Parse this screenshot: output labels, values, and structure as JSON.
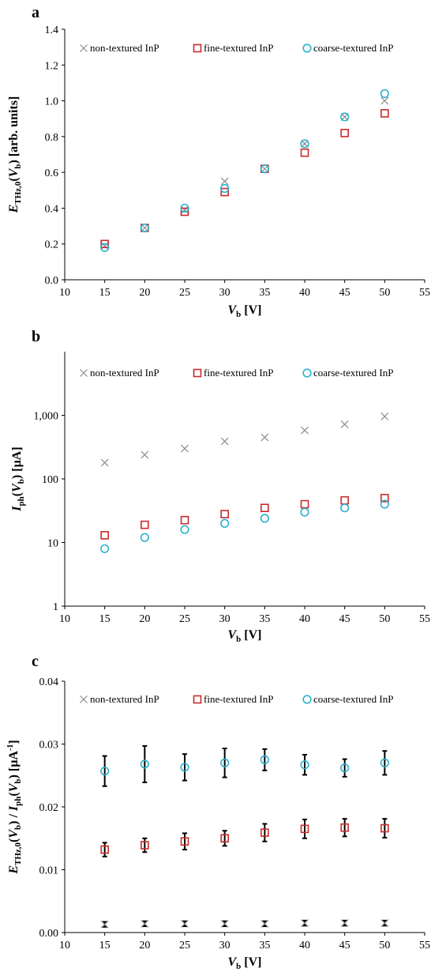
{
  "colors": {
    "non_textured": "#8c8c8c",
    "fine_textured": "#cc2a2a",
    "coarse_textured": "#2ab2cf",
    "error_bar": "#000000"
  },
  "legend": [
    {
      "label": "non-textured InP",
      "marker": "x"
    },
    {
      "label": "fine-textured InP",
      "marker": "square"
    },
    {
      "label": "coarse-textured InP",
      "marker": "circle"
    }
  ],
  "chart_data": [
    {
      "panel": "a",
      "type": "scatter",
      "x": [
        15,
        20,
        25,
        30,
        35,
        40,
        45,
        50
      ],
      "xlabel": {
        "main": "V",
        "sub": "b",
        "tail": " [V]"
      },
      "ylabel": {
        "main": "E",
        "sub": "THz,0",
        "tail": "(V",
        "sub2": "b",
        "tail2": ") [arb. units]"
      },
      "xlim": [
        10,
        55
      ],
      "xticks": [
        "10",
        "15",
        "20",
        "25",
        "30",
        "35",
        "40",
        "45",
        "50",
        "55"
      ],
      "ylim": [
        0,
        1.4
      ],
      "yscale": "linear",
      "yticks": [
        0,
        0.2,
        0.4,
        0.6,
        0.8,
        1.0,
        1.2,
        1.4
      ],
      "yticklabels": [
        "0.0",
        "0.2",
        "0.4",
        "0.6",
        "0.8",
        "1.0",
        "1.2",
        "1.4"
      ],
      "grid": false,
      "legend_position": "top",
      "series": [
        {
          "name": "non-textured InP",
          "marker": "x",
          "y": [
            0.19,
            0.29,
            0.39,
            0.55,
            0.62,
            0.76,
            0.91,
            1.0
          ]
        },
        {
          "name": "fine-textured InP",
          "marker": "square",
          "y": [
            0.2,
            0.29,
            0.38,
            0.49,
            0.62,
            0.71,
            0.82,
            0.93
          ]
        },
        {
          "name": "coarse-textured InP",
          "marker": "circle",
          "y": [
            0.18,
            0.29,
            0.4,
            0.51,
            0.62,
            0.76,
            0.91,
            1.04
          ]
        }
      ]
    },
    {
      "panel": "b",
      "type": "scatter",
      "x": [
        15,
        20,
        25,
        30,
        35,
        40,
        45,
        50
      ],
      "xlabel": {
        "main": "V",
        "sub": "b",
        "tail": " [V]"
      },
      "ylabel": {
        "main": "I",
        "sub": "ph",
        "tail": "(V",
        "sub2": "b",
        "tail2": ") [µA]"
      },
      "xlim": [
        10,
        55
      ],
      "xticks": [
        "10",
        "15",
        "20",
        "25",
        "30",
        "35",
        "40",
        "45",
        "50",
        "55"
      ],
      "ylim": [
        1,
        10000
      ],
      "yscale": "log",
      "yticks": [
        1,
        10,
        100,
        1000
      ],
      "yticklabels": [
        "1",
        "10",
        "100",
        "1,000"
      ],
      "grid": false,
      "legend_position": "top",
      "series": [
        {
          "name": "non-textured InP",
          "marker": "x",
          "y": [
            180,
            240,
            300,
            390,
            450,
            580,
            720,
            960
          ]
        },
        {
          "name": "fine-textured InP",
          "marker": "square",
          "y": [
            13,
            19,
            22.5,
            28,
            35,
            40,
            46,
            50
          ]
        },
        {
          "name": "coarse-textured InP",
          "marker": "circle",
          "y": [
            8,
            12,
            16,
            20,
            24,
            30,
            35,
            40
          ]
        }
      ]
    },
    {
      "panel": "c",
      "type": "scatter",
      "x": [
        15,
        20,
        25,
        30,
        35,
        40,
        45,
        50
      ],
      "xlabel": {
        "main": "V",
        "sub": "b",
        "tail": " [V]"
      },
      "ylabel": {
        "main": "E",
        "sub": "THz,0",
        "tail": "(V",
        "sub2": "b",
        "tail2": ") / I",
        "sub3": "ph",
        "tail3": "(V",
        "sub4": "b",
        "tail4": ") [µA",
        "sup": "-1",
        "tail5": "]"
      },
      "xlim": [
        10,
        55
      ],
      "xticks": [
        "10",
        "15",
        "20",
        "25",
        "30",
        "35",
        "40",
        "45",
        "50",
        "55"
      ],
      "ylim": [
        0,
        0.04
      ],
      "yscale": "linear",
      "yticks": [
        0,
        0.01,
        0.02,
        0.03,
        0.04
      ],
      "yticklabels": [
        "0.00",
        "0.01",
        "0.02",
        "0.03",
        "0.04"
      ],
      "grid": false,
      "legend_position": "top",
      "series": [
        {
          "name": "non-textured InP",
          "marker": "x",
          "y": [
            0.0013,
            0.0014,
            0.0014,
            0.0014,
            0.0014,
            0.0015,
            0.0015,
            0.0015
          ],
          "err": [
            0.0004,
            0.0004,
            0.0004,
            0.0004,
            0.0004,
            0.0004,
            0.0004,
            0.0004
          ]
        },
        {
          "name": "fine-textured InP",
          "marker": "square",
          "y": [
            0.0132,
            0.0139,
            0.0145,
            0.015,
            0.0159,
            0.0165,
            0.0167,
            0.0166
          ],
          "err": [
            0.0011,
            0.0011,
            0.0013,
            0.0012,
            0.0014,
            0.0015,
            0.0014,
            0.0015
          ]
        },
        {
          "name": "coarse-textured InP",
          "marker": "circle",
          "y": [
            0.0257,
            0.0268,
            0.0263,
            0.027,
            0.0275,
            0.0267,
            0.0262,
            0.027
          ],
          "err": [
            0.0024,
            0.0029,
            0.0021,
            0.0023,
            0.0017,
            0.0016,
            0.0014,
            0.0019
          ]
        }
      ]
    }
  ]
}
